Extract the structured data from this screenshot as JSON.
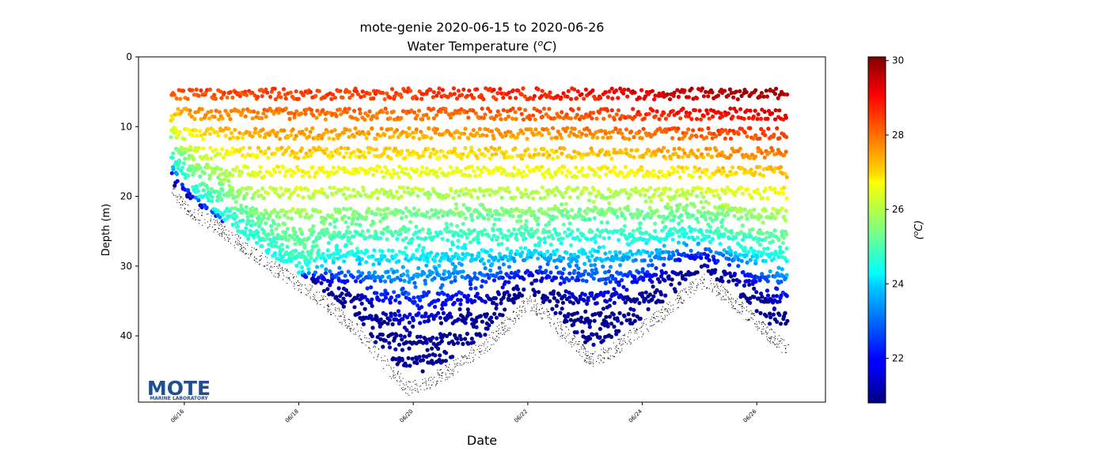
{
  "chart_data": {
    "type": "scatter",
    "title": "mote-genie 2020-06-15 to 2020-06-26",
    "subtitle_prefix": "Water Temperature (",
    "subtitle_unit_sup": "o",
    "subtitle_unit_main": "C",
    "subtitle_suffix": ")",
    "xlabel": "Date",
    "ylabel": "Depth (m)",
    "y_inverted": true,
    "xlim": [
      15.2,
      27.2
    ],
    "ylim": [
      0,
      49.5
    ],
    "x_ticks": [
      16,
      18,
      20,
      22,
      24,
      26
    ],
    "x_tick_labels": [
      "06/16",
      "06/18",
      "06/20",
      "06/22",
      "06/24",
      "06/26"
    ],
    "y_ticks": [
      0,
      10,
      20,
      30,
      40
    ],
    "y_tick_labels": [
      "0",
      "10",
      "20",
      "30",
      "40"
    ],
    "colorbar": {
      "label_sup": "o",
      "label_main": "C",
      "range": [
        20.8,
        30.1
      ],
      "ticks": [
        22,
        24,
        26,
        28,
        30
      ],
      "tick_labels": [
        "22",
        "24",
        "26",
        "28",
        "30"
      ],
      "colormap": "jet"
    },
    "profile_start_x": 15.78,
    "profile_end_x": 26.55,
    "sampled_layers_m": [
      5.3,
      8.2,
      11.0,
      13.8,
      16.5,
      19.5,
      22.5,
      25.5,
      28.5,
      31.5,
      34.5,
      37.5,
      40.5,
      43.5
    ],
    "seafloor_depth_profile": [
      {
        "x": 15.78,
        "depth": 19.0
      },
      {
        "x": 16.0,
        "depth": 21.0
      },
      {
        "x": 16.5,
        "depth": 23.5
      },
      {
        "x": 17.0,
        "depth": 26.5
      },
      {
        "x": 17.5,
        "depth": 29.5
      },
      {
        "x": 18.0,
        "depth": 32.0
      },
      {
        "x": 18.5,
        "depth": 35.0
      },
      {
        "x": 19.0,
        "depth": 38.5
      },
      {
        "x": 19.5,
        "depth": 43.5
      },
      {
        "x": 19.9,
        "depth": 47.0
      },
      {
        "x": 20.3,
        "depth": 46.0
      },
      {
        "x": 20.8,
        "depth": 43.5
      },
      {
        "x": 21.3,
        "depth": 40.5
      },
      {
        "x": 21.8,
        "depth": 36.5
      },
      {
        "x": 22.0,
        "depth": 34.5
      },
      {
        "x": 22.3,
        "depth": 36.5
      },
      {
        "x": 22.7,
        "depth": 39.5
      },
      {
        "x": 23.1,
        "depth": 43.0
      },
      {
        "x": 23.4,
        "depth": 42.0
      },
      {
        "x": 23.9,
        "depth": 39.0
      },
      {
        "x": 24.4,
        "depth": 36.0
      },
      {
        "x": 24.8,
        "depth": 33.0
      },
      {
        "x": 25.1,
        "depth": 31.5
      },
      {
        "x": 25.5,
        "depth": 34.0
      },
      {
        "x": 26.0,
        "depth": 37.5
      },
      {
        "x": 26.3,
        "depth": 40.0
      },
      {
        "x": 26.55,
        "depth": 41.5
      }
    ],
    "thermocline_depth_profile": [
      {
        "x": 15.78,
        "depth": 15.0
      },
      {
        "x": 16.2,
        "depth": 19.5
      },
      {
        "x": 16.8,
        "depth": 24.0
      },
      {
        "x": 17.2,
        "depth": 27.0
      },
      {
        "x": 17.6,
        "depth": 29.0
      },
      {
        "x": 18.0,
        "depth": 31.0
      },
      {
        "x": 18.5,
        "depth": 29.0
      },
      {
        "x": 19.0,
        "depth": 28.0
      },
      {
        "x": 20.0,
        "depth": 27.5
      },
      {
        "x": 21.0,
        "depth": 27.0
      },
      {
        "x": 22.0,
        "depth": 27.5
      },
      {
        "x": 23.0,
        "depth": 26.5
      },
      {
        "x": 24.0,
        "depth": 26.5
      },
      {
        "x": 24.8,
        "depth": 25.5
      },
      {
        "x": 25.5,
        "depth": 27.0
      },
      {
        "x": 26.55,
        "depth": 29.0
      }
    ],
    "surface_temperature_profile": [
      {
        "x": 15.78,
        "temp": 28.3
      },
      {
        "x": 18.0,
        "temp": 28.4
      },
      {
        "x": 20.0,
        "temp": 28.5
      },
      {
        "x": 22.0,
        "temp": 28.7
      },
      {
        "x": 23.5,
        "temp": 29.0
      },
      {
        "x": 24.5,
        "temp": 29.5
      },
      {
        "x": 25.5,
        "temp": 29.7
      },
      {
        "x": 26.55,
        "temp": 29.8
      }
    ],
    "deep_temperature_min": 21.0
  },
  "logo": {
    "word": "MOTE",
    "tagline": "MARINE LABORATORY",
    "color": "#1f4f8e"
  },
  "colors": {
    "axis": "#000000",
    "seafloor_marks": "#000000"
  }
}
